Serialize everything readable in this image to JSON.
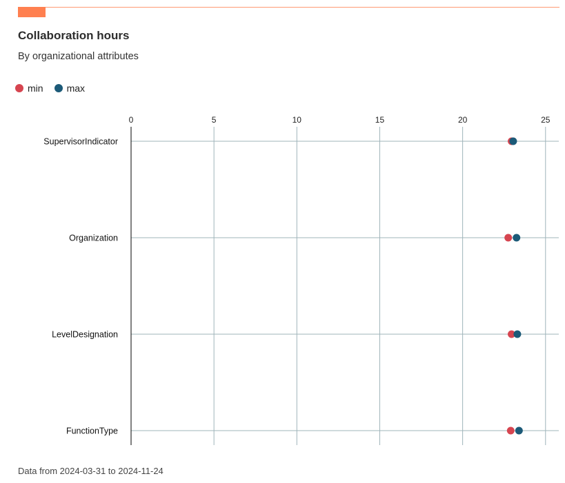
{
  "header": {
    "title": "Collaboration hours",
    "subtitle": "By organizational attributes"
  },
  "legend": [
    {
      "label": "min",
      "color": "#d64550"
    },
    {
      "label": "max",
      "color": "#1c5a78"
    }
  ],
  "caption": "Data from 2024-03-31 to 2024-11-24",
  "colors": {
    "accent": "#ff8050",
    "grid": "#9fb4ba",
    "min": "#d64550",
    "max": "#1c5a78"
  },
  "chart_data": {
    "type": "scatter",
    "title": "Collaboration hours",
    "subtitle": "By organizational attributes",
    "categories": [
      "SupervisorIndicator",
      "Organization",
      "LevelDesignation",
      "FunctionType"
    ],
    "x_ticks": [
      0,
      5,
      10,
      15,
      20,
      25
    ],
    "xlim": [
      0,
      25.8
    ],
    "grid": true,
    "legend_position": "top-left",
    "series": [
      {
        "name": "min",
        "values": [
          22.95,
          22.75,
          22.95,
          22.9
        ]
      },
      {
        "name": "max",
        "values": [
          23.05,
          23.25,
          23.3,
          23.4
        ]
      }
    ]
  }
}
